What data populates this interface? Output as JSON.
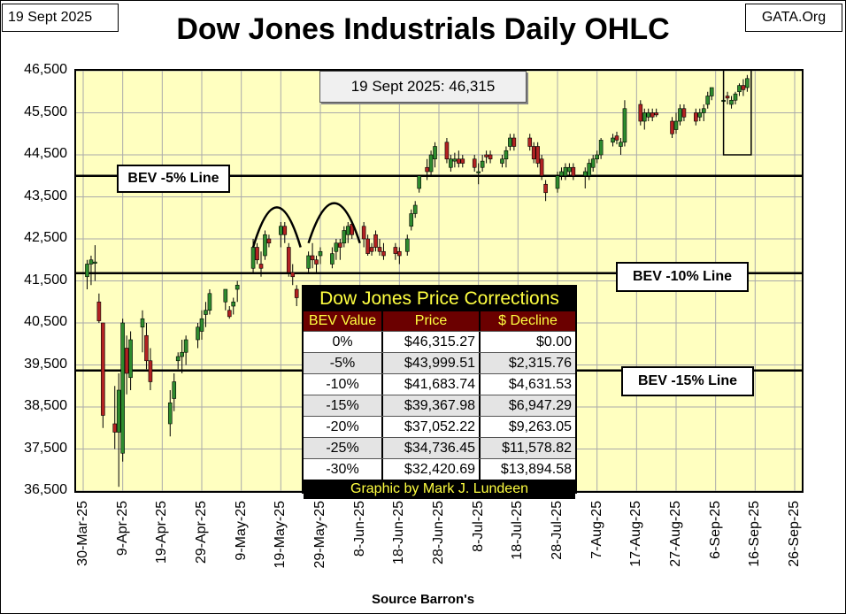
{
  "header": {
    "date": "19 Sept 2025",
    "source": "GATA.Org",
    "title": "Dow Jones Industrials Daily OHLC"
  },
  "last_box": "19 Sept 2025: 46,315",
  "bev_labels": {
    "bev5": "BEV -5% Line",
    "bev10": "BEV -10% Line",
    "bev15": "BEV -15% Line"
  },
  "corrections_table": {
    "title": "Dow Jones Price Corrections",
    "headers": [
      "BEV Value",
      "Price",
      "$ Decline"
    ],
    "rows": [
      [
        "0%",
        "$46,315.27",
        "$0.00"
      ],
      [
        "-5%",
        "$43,999.51",
        "$2,315.76"
      ],
      [
        "-10%",
        "$41,683.74",
        "$4,631.53"
      ],
      [
        "-15%",
        "$39,367.98",
        "$6,947.29"
      ],
      [
        "-20%",
        "$37,052.22",
        "$9,263.05"
      ],
      [
        "-25%",
        "$34,736.45",
        "$11,578.82"
      ],
      [
        "-30%",
        "$32,420.69",
        "$13,894.58"
      ]
    ],
    "footer": "Graphic by Mark J. Lundeen"
  },
  "chart_data": {
    "type": "candlestick",
    "title": "Dow Jones Industrials Daily OHLC",
    "xlabel": "Source Barron's",
    "ylabel": "",
    "ylim": [
      36500,
      46500
    ],
    "yticks": [
      36500,
      37500,
      38500,
      39500,
      40500,
      41500,
      42500,
      43500,
      44500,
      45500,
      46500
    ],
    "ytick_labels": [
      "36,500",
      "37,500",
      "38,500",
      "39,500",
      "40,500",
      "41,500",
      "42,500",
      "43,500",
      "44,500",
      "45,500",
      "46,500"
    ],
    "xlim": [
      0,
      180
    ],
    "xticks": [
      0,
      10,
      20,
      30,
      40,
      50,
      60,
      70,
      80,
      90,
      100,
      110,
      120,
      130,
      140,
      150,
      160,
      170,
      180
    ],
    "xtick_labels": [
      "30-Mar-25",
      "9-Apr-25",
      "19-Apr-25",
      "29-Apr-25",
      "9-May-25",
      "19-May-25",
      "29-May-25",
      "8-Jun-25",
      "18-Jun-25",
      "28-Jun-25",
      "8-Jul-25",
      "18-Jul-25",
      "28-Jul-25",
      "7-Aug-25",
      "17-Aug-25",
      "27-Aug-25",
      "6-Sep-25",
      "16-Sep-25",
      "26-Sep-25"
    ],
    "colors": {
      "up": "#2e8b2e",
      "down": "#b22222",
      "background": "#ffffc0"
    },
    "reference_lines": [
      {
        "name": "BEV -5% Line",
        "value": 43999.51
      },
      {
        "name": "BEV -10% Line",
        "value": 41683.74
      },
      {
        "name": "BEV -15% Line",
        "value": 39367.98
      }
    ],
    "candles": [
      [
        1,
        41600,
        42000,
        41300,
        41900
      ],
      [
        2,
        41900,
        42100,
        41400,
        42000
      ],
      [
        3,
        41950,
        42350,
        41500,
        41950
      ],
      [
        4,
        41000,
        41200,
        40500,
        40550
      ],
      [
        5,
        40500,
        40500,
        38000,
        38300
      ],
      [
        8,
        38100,
        39000,
        37500,
        37900
      ],
      [
        9,
        37900,
        39300,
        36600,
        38900
      ],
      [
        10,
        37400,
        40600,
        37200,
        40500
      ],
      [
        11,
        39900,
        40200,
        38800,
        39300
      ],
      [
        12,
        39200,
        40300,
        38900,
        40100
      ],
      [
        15,
        40400,
        40800,
        39800,
        40600
      ],
      [
        16,
        40200,
        40500,
        39400,
        39600
      ],
      [
        17,
        39600,
        39900,
        38900,
        39100
      ],
      [
        22,
        38100,
        38900,
        37800,
        38600
      ],
      [
        23,
        38700,
        39300,
        38400,
        39100
      ],
      [
        24,
        39600,
        39800,
        39400,
        39700
      ],
      [
        25,
        39700,
        40100,
        39300,
        39800
      ],
      [
        26,
        39800,
        40200,
        39500,
        40100
      ],
      [
        29,
        40100,
        40500,
        39900,
        40400
      ],
      [
        30,
        40300,
        40800,
        40100,
        40600
      ],
      [
        31,
        40700,
        41000,
        40400,
        40800
      ],
      [
        32,
        40800,
        41300,
        40700,
        41200
      ],
      [
        36,
        41000,
        41300,
        40800,
        41300
      ],
      [
        37,
        40800,
        40900,
        40600,
        40650
      ],
      [
        38,
        40900,
        41100,
        40700,
        41000
      ],
      [
        39,
        41300,
        41500,
        41000,
        41400
      ],
      [
        43,
        41800,
        42500,
        41700,
        42300
      ],
      [
        44,
        42300,
        42400,
        41900,
        42000
      ],
      [
        45,
        41900,
        42200,
        41600,
        41800
      ],
      [
        46,
        42100,
        42700,
        42000,
        42600
      ],
      [
        47,
        42500,
        42600,
        42300,
        42400
      ],
      [
        50,
        42600,
        42900,
        42300,
        42800
      ],
      [
        51,
        42800,
        42900,
        42400,
        42600
      ],
      [
        52,
        42300,
        42400,
        41600,
        41700
      ],
      [
        53,
        41700,
        41900,
        41400,
        41600
      ],
      [
        54,
        41300,
        41400,
        40900,
        41100
      ],
      [
        57,
        41800,
        42200,
        41700,
        42100
      ],
      [
        58,
        42100,
        42400,
        41800,
        42000
      ],
      [
        59,
        42000,
        42100,
        41700,
        41900
      ],
      [
        60,
        42100,
        42300,
        41900,
        42200
      ],
      [
        63,
        41900,
        42300,
        41800,
        42150
      ],
      [
        64,
        42200,
        42500,
        42000,
        42400
      ],
      [
        65,
        42400,
        42500,
        42000,
        42300
      ],
      [
        66,
        42400,
        42800,
        42300,
        42700
      ],
      [
        67,
        42600,
        42900,
        42400,
        42800
      ],
      [
        68,
        42850,
        42900,
        42500,
        42600
      ],
      [
        71,
        42800,
        42900,
        42300,
        42500
      ],
      [
        72,
        42500,
        42600,
        42100,
        42150
      ],
      [
        73,
        42300,
        42400,
        42100,
        42200
      ],
      [
        74,
        42600,
        42700,
        42200,
        42300
      ],
      [
        75,
        42300,
        42500,
        42100,
        42200
      ],
      [
        76,
        42200,
        42400,
        42000,
        42100
      ],
      [
        79,
        42300,
        42400,
        42000,
        42150
      ],
      [
        80,
        42200,
        42300,
        41900,
        42100
      ],
      [
        82,
        42200,
        42600,
        42100,
        42500
      ],
      [
        83,
        42800,
        43200,
        42700,
        43100
      ],
      [
        84,
        43100,
        43400,
        43000,
        43300
      ],
      [
        85,
        43700,
        44000,
        43600,
        44000
      ],
      [
        87,
        44200,
        44400,
        43900,
        44100
      ],
      [
        88,
        44100,
        44600,
        44000,
        44500
      ],
      [
        89,
        44400,
        44800,
        44200,
        44700
      ],
      [
        92,
        44800,
        44900,
        44300,
        44400
      ],
      [
        93,
        44200,
        44500,
        44100,
        44400
      ],
      [
        94,
        44350,
        44550,
        44200,
        44400
      ],
      [
        95,
        44400,
        44600,
        44200,
        44300
      ],
      [
        96,
        44400,
        44500,
        44200,
        44300
      ],
      [
        99,
        44400,
        44500,
        44100,
        44200
      ],
      [
        100,
        44100,
        44300,
        43800,
        44100
      ],
      [
        101,
        44200,
        44500,
        44100,
        44350
      ],
      [
        102,
        44500,
        44600,
        44300,
        44450
      ],
      [
        103,
        44500,
        44600,
        44300,
        44400
      ],
      [
        106,
        44300,
        44500,
        44200,
        44400
      ],
      [
        107,
        44400,
        44700,
        44200,
        44600
      ],
      [
        108,
        44700,
        45000,
        44600,
        44900
      ],
      [
        109,
        44900,
        45000,
        44600,
        44700
      ],
      [
        113,
        44900,
        45000,
        44600,
        44700
      ],
      [
        114,
        44700,
        44800,
        44300,
        44400
      ],
      [
        115,
        44700,
        44800,
        44200,
        44300
      ],
      [
        116,
        44400,
        44500,
        43900,
        44000
      ],
      [
        117,
        43800,
        43900,
        43400,
        43600
      ],
      [
        120,
        43700,
        44100,
        43600,
        44000
      ],
      [
        121,
        44000,
        44200,
        43900,
        44100
      ],
      [
        122,
        44000,
        44300,
        43900,
        44200
      ],
      [
        123,
        44100,
        44300,
        44000,
        44200
      ],
      [
        124,
        44200,
        44300,
        43900,
        44000
      ],
      [
        127,
        44000,
        44200,
        43700,
        44100
      ],
      [
        128,
        44000,
        44400,
        43900,
        44300
      ],
      [
        129,
        44200,
        44500,
        44100,
        44400
      ],
      [
        130,
        44400,
        44600,
        44300,
        44500
      ],
      [
        131,
        44500,
        44900,
        44400,
        44850
      ],
      [
        134,
        44800,
        45000,
        44700,
        44900
      ],
      [
        135,
        44950,
        45050,
        44750,
        44850
      ],
      [
        136,
        44700,
        44900,
        44500,
        44800
      ],
      [
        137,
        44800,
        45800,
        44700,
        45600
      ],
      [
        141,
        45700,
        45800,
        45200,
        45300
      ],
      [
        142,
        45300,
        45600,
        45100,
        45500
      ],
      [
        143,
        45400,
        45600,
        45300,
        45500
      ],
      [
        144,
        45500,
        45600,
        45300,
        45400
      ],
      [
        145,
        45500,
        45600,
        45400,
        45450
      ],
      [
        149,
        45300,
        45400,
        44900,
        45000
      ],
      [
        150,
        45100,
        45500,
        45000,
        45300
      ],
      [
        151,
        45300,
        45700,
        45200,
        45600
      ],
      [
        152,
        45600,
        45700,
        45300,
        45400
      ],
      [
        155,
        45500,
        45600,
        45200,
        45300
      ],
      [
        156,
        45400,
        45600,
        45300,
        45500
      ],
      [
        157,
        45500,
        45700,
        45300,
        45600
      ],
      [
        158,
        45700,
        46000,
        45600,
        45900
      ],
      [
        159,
        45900,
        46100,
        45800,
        46100
      ],
      [
        162,
        45800,
        45900,
        45600,
        45800
      ],
      [
        163,
        45900,
        46000,
        45700,
        45850
      ],
      [
        164,
        45700,
        45900,
        45600,
        45800
      ],
      [
        165,
        45800,
        46000,
        45700,
        45950
      ],
      [
        166,
        46000,
        46200,
        45900,
        46150
      ],
      [
        167,
        46150,
        46300,
        45900,
        46050
      ],
      [
        168,
        46100,
        46400,
        46000,
        46315
      ]
    ],
    "annotations": [
      {
        "type": "arc",
        "x": [
          43,
          55
        ],
        "peak": 43250,
        "base": 42300
      },
      {
        "type": "arc",
        "x": [
          57,
          70
        ],
        "peak": 43350,
        "base": 42400
      },
      {
        "type": "box",
        "x": [
          162,
          169
        ],
        "y": [
          44500,
          47100
        ]
      }
    ]
  }
}
